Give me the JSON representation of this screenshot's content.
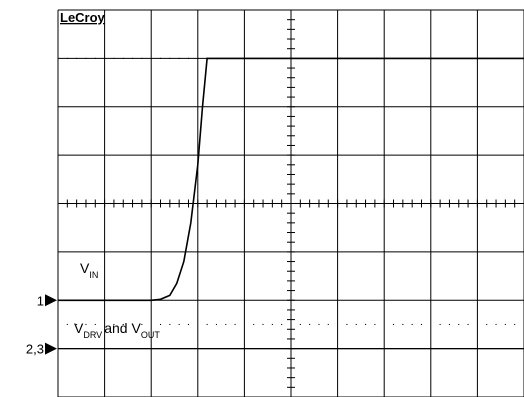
{
  "brand": "LeCroy",
  "chart_data": {
    "type": "line",
    "title": "",
    "xlabel": "",
    "ylabel": "",
    "grid": true,
    "grid_divisions": {
      "x": 10,
      "y": 8
    },
    "xlim": [
      0,
      10
    ],
    "ylim": [
      -4,
      4
    ],
    "series": [
      {
        "name": "V_IN",
        "channel_marker": "1",
        "x": [
          0,
          2.0,
          2.2,
          2.4,
          2.55,
          2.7,
          2.85,
          3.0,
          3.1,
          3.2,
          10
        ],
        "y": [
          -2,
          -2,
          -1.98,
          -1.9,
          -1.65,
          -1.2,
          -0.4,
          0.8,
          2.0,
          3.0,
          3.0
        ]
      },
      {
        "name": "V_DRV and V_OUT",
        "channel_marker": "2,3",
        "x": [
          0,
          10
        ],
        "y": [
          -3,
          -3
        ]
      }
    ],
    "annotations": {
      "vin": {
        "main": "V",
        "sub": "IN"
      },
      "vdrv": {
        "v1": "V",
        "sub1": "DRV",
        "mid": "and",
        "v2": "V",
        "sub2": "OUT"
      }
    }
  }
}
